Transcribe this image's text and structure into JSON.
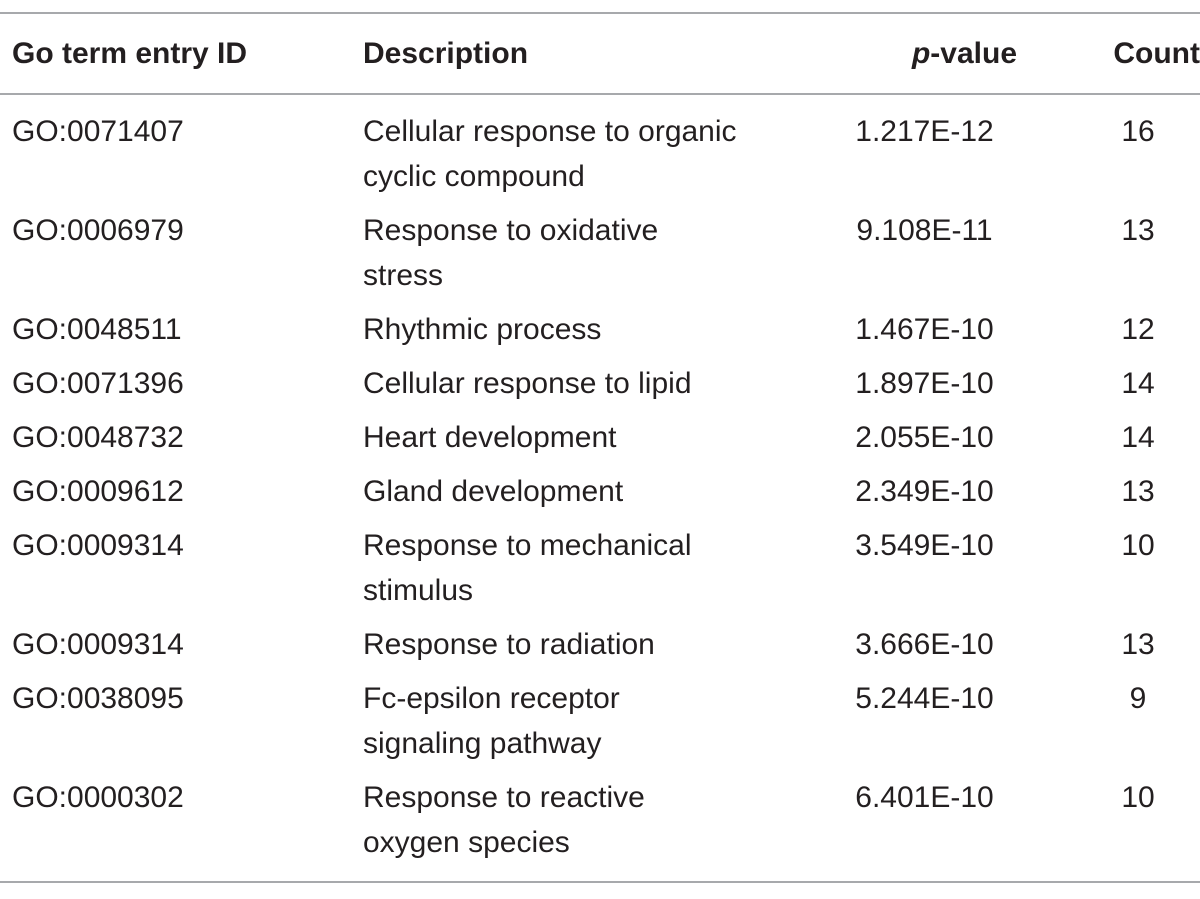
{
  "table": {
    "columns": [
      "Go term entry ID",
      "Description",
      {
        "italic": "p",
        "rest": "-value"
      },
      "Count"
    ],
    "rows": [
      [
        "GO:0071407",
        [
          "Cellular response to organic",
          "cyclic compound"
        ],
        "1.217E-12",
        16
      ],
      [
        "GO:0006979",
        [
          "Response to oxidative",
          "stress"
        ],
        "9.108E-11",
        13
      ],
      [
        "GO:0048511",
        [
          "Rhythmic process"
        ],
        "1.467E-10",
        12
      ],
      [
        "GO:0071396",
        [
          "Cellular response to lipid"
        ],
        "1.897E-10",
        14
      ],
      [
        "GO:0048732",
        [
          "Heart development"
        ],
        "2.055E-10",
        14
      ],
      [
        "GO:0009612",
        [
          "Gland development"
        ],
        "2.349E-10",
        13
      ],
      [
        "GO:0009314",
        [
          "Response to mechanical",
          "stimulus"
        ],
        "3.549E-10",
        10
      ],
      [
        "GO:0009314",
        [
          "Response to radiation"
        ],
        "3.666E-10",
        13
      ],
      [
        "GO:0038095",
        [
          "Fc-epsilon receptor",
          "signaling pathway"
        ],
        "5.244E-10",
        9
      ],
      [
        "GO:0000302",
        [
          "Response to reactive",
          "oxygen species"
        ],
        "6.401E-10",
        10
      ]
    ]
  }
}
